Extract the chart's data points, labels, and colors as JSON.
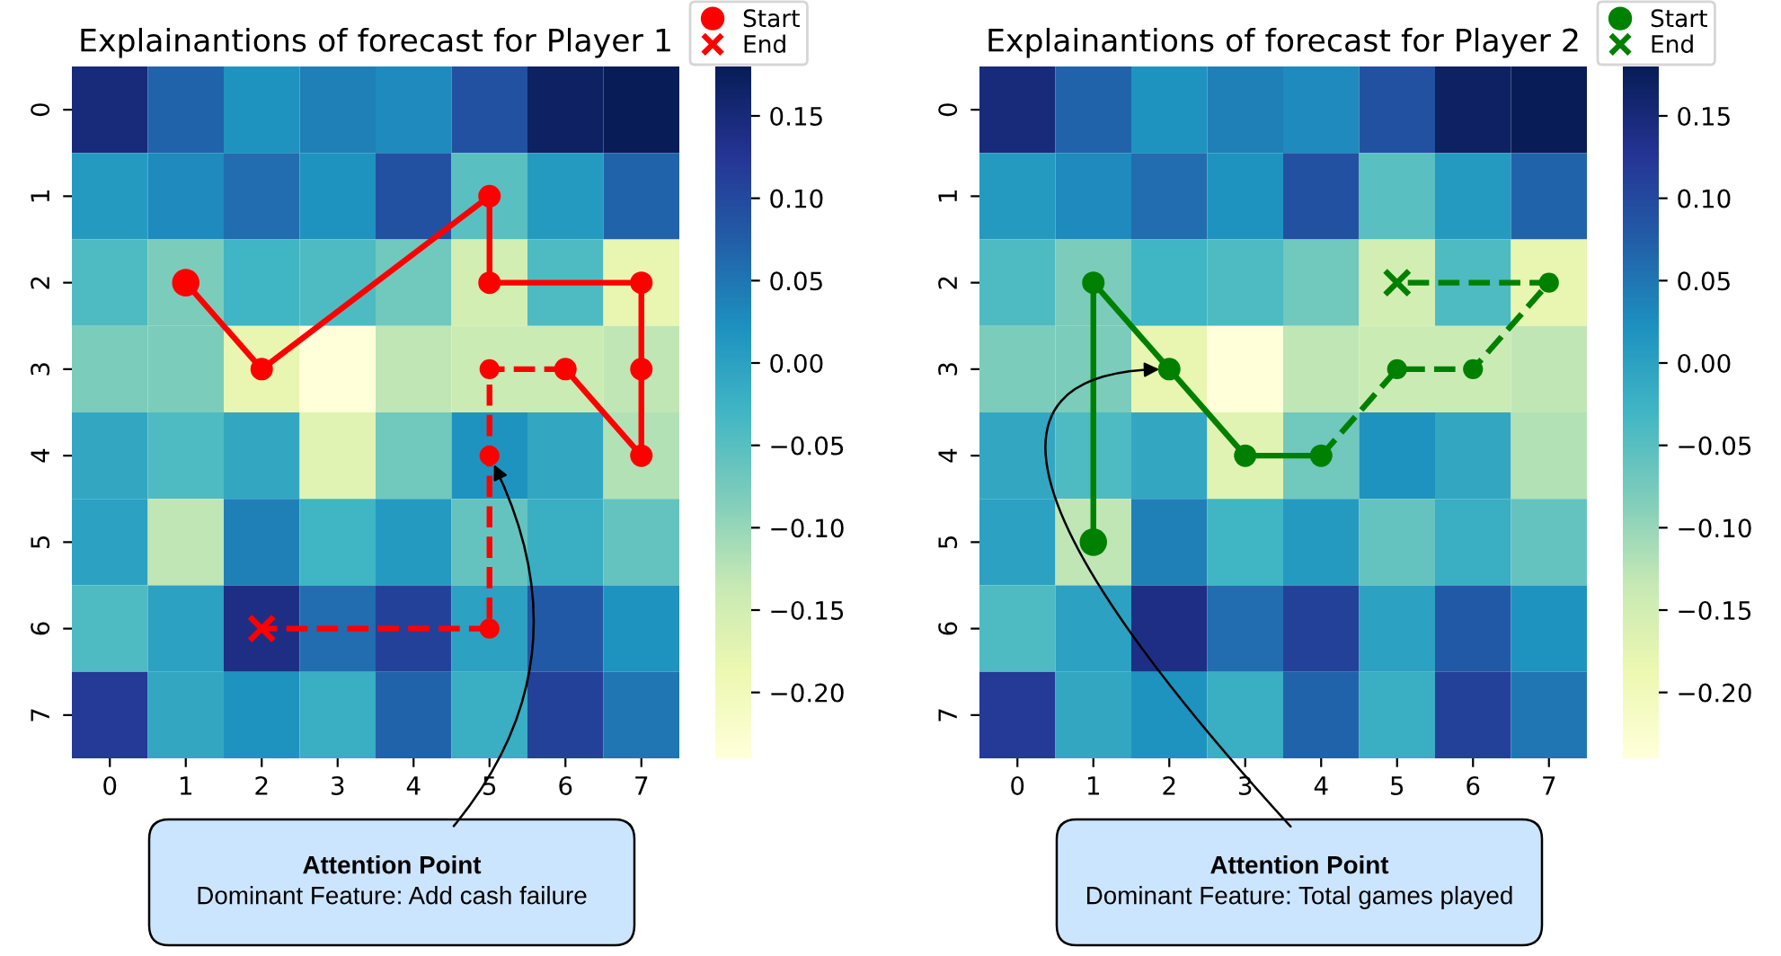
{
  "chart_data": [
    {
      "type": "heatmap",
      "title": "Explainantions of forecast for Player 1",
      "categories": [
        "0",
        "1",
        "2",
        "3",
        "4",
        "5",
        "6",
        "7"
      ],
      "y_categories": [
        "0",
        "1",
        "2",
        "3",
        "4",
        "5",
        "6",
        "7"
      ],
      "cells": [
        [
          0.15,
          0.07,
          0.02,
          0.04,
          0.03,
          0.09,
          0.17,
          0.18
        ],
        [
          0.01,
          0.03,
          0.06,
          0.02,
          0.09,
          -0.05,
          0.01,
          0.07
        ],
        [
          -0.04,
          -0.08,
          -0.03,
          -0.04,
          -0.07,
          -0.15,
          -0.04,
          -0.18
        ],
        [
          -0.08,
          -0.08,
          -0.18,
          -0.24,
          -0.13,
          -0.14,
          -0.14,
          -0.13
        ],
        [
          -0.01,
          -0.04,
          -0.01,
          -0.17,
          -0.07,
          0.02,
          -0.01,
          -0.12
        ],
        [
          0.0,
          -0.13,
          0.04,
          -0.03,
          0.01,
          -0.06,
          -0.02,
          -0.06
        ],
        [
          -0.04,
          0.0,
          0.14,
          0.06,
          0.11,
          0.0,
          0.08,
          0.02
        ],
        [
          0.12,
          -0.01,
          0.02,
          -0.02,
          0.07,
          -0.02,
          0.11,
          0.05
        ]
      ],
      "clim": [
        -0.24,
        0.18
      ],
      "cticks": [
        {
          "value": 0.15,
          "label": "0.15"
        },
        {
          "value": 0.1,
          "label": "0.10"
        },
        {
          "value": 0.05,
          "label": "0.05"
        },
        {
          "value": 0,
          "label": "0.00"
        },
        {
          "value": -0.05,
          "label": "−0.05"
        },
        {
          "value": -0.1,
          "label": "−0.10"
        },
        {
          "value": -0.15,
          "label": "−0.15"
        },
        {
          "value": -0.2,
          "label": "−0.20"
        }
      ],
      "legend": "top right",
      "series": [
        {
          "type": "line",
          "color": "#ff0000",
          "marker": "circle",
          "line_style": "solid",
          "x": [
            "1",
            "2",
            "5",
            "5",
            "7",
            "7",
            "7",
            "6"
          ],
          "values": [
            2,
            3,
            1,
            2,
            2,
            3,
            4,
            3
          ]
        },
        {
          "type": "line",
          "color": "#ff0000",
          "marker": "none",
          "line_style": "dashed",
          "x": [
            "6",
            "5",
            "5",
            "5",
            "2"
          ],
          "values": [
            3,
            3,
            4,
            6,
            6
          ]
        },
        {
          "type": "scatter",
          "color": "#ff0000",
          "marker": "circle",
          "x": [
            "5",
            "5",
            "5"
          ],
          "values": [
            3,
            4,
            6
          ]
        },
        {
          "name": "Start",
          "type": "scatter",
          "color": "#ff0000",
          "marker": "circle",
          "x": [
            "1"
          ],
          "values": [
            2
          ]
        },
        {
          "name": "End",
          "type": "scatter",
          "color": "#ff0000",
          "marker": "cross",
          "x": [
            "2"
          ],
          "values": [
            6
          ]
        }
      ],
      "annotations": [
        {
          "text": "Attention Point\nDominant Feature: Add cash failure",
          "x": "5",
          "y": "4"
        }
      ]
    },
    {
      "type": "heatmap",
      "title": "Explainantions of forecast for Player 2",
      "categories": [
        "0",
        "1",
        "2",
        "3",
        "4",
        "5",
        "6",
        "7"
      ],
      "y_categories": [
        "0",
        "1",
        "2",
        "3",
        "4",
        "5",
        "6",
        "7"
      ],
      "cells": [
        [
          0.15,
          0.07,
          0.02,
          0.04,
          0.03,
          0.09,
          0.17,
          0.18
        ],
        [
          0.01,
          0.03,
          0.06,
          0.02,
          0.09,
          -0.05,
          0.01,
          0.07
        ],
        [
          -0.04,
          -0.08,
          -0.03,
          -0.04,
          -0.07,
          -0.15,
          -0.04,
          -0.18
        ],
        [
          -0.08,
          -0.08,
          -0.18,
          -0.24,
          -0.13,
          -0.14,
          -0.14,
          -0.13
        ],
        [
          -0.01,
          -0.04,
          -0.01,
          -0.17,
          -0.07,
          0.02,
          -0.01,
          -0.12
        ],
        [
          0.0,
          -0.13,
          0.04,
          -0.03,
          0.01,
          -0.06,
          -0.02,
          -0.06
        ],
        [
          -0.04,
          0.0,
          0.14,
          0.06,
          0.11,
          0.0,
          0.08,
          0.02
        ],
        [
          0.12,
          -0.01,
          0.02,
          -0.02,
          0.07,
          -0.02,
          0.11,
          0.05
        ]
      ],
      "clim": [
        -0.24,
        0.18
      ],
      "cticks": [
        {
          "value": 0.15,
          "label": "0.15"
        },
        {
          "value": 0.1,
          "label": "0.10"
        },
        {
          "value": 0.05,
          "label": "0.05"
        },
        {
          "value": 0,
          "label": "0.00"
        },
        {
          "value": -0.05,
          "label": "−0.05"
        },
        {
          "value": -0.1,
          "label": "−0.10"
        },
        {
          "value": -0.15,
          "label": "−0.15"
        },
        {
          "value": -0.2,
          "label": "−0.20"
        }
      ],
      "legend": "top right",
      "series": [
        {
          "type": "line",
          "color": "#008000",
          "marker": "circle",
          "line_style": "solid",
          "x": [
            "1",
            "1",
            "2",
            "3",
            "4"
          ],
          "values": [
            5,
            2,
            3,
            4,
            4
          ]
        },
        {
          "type": "line",
          "color": "#008000",
          "marker": "none",
          "line_style": "dashed",
          "x": [
            "4",
            "5",
            "6",
            "7",
            "5"
          ],
          "values": [
            4,
            3,
            3,
            2,
            2
          ]
        },
        {
          "type": "scatter",
          "color": "#008000",
          "marker": "circle",
          "x": [
            "5",
            "6",
            "7"
          ],
          "values": [
            3,
            3,
            2
          ]
        },
        {
          "name": "Start",
          "type": "scatter",
          "color": "#008000",
          "marker": "circle",
          "x": [
            "1"
          ],
          "values": [
            5
          ]
        },
        {
          "name": "End",
          "type": "scatter",
          "color": "#008000",
          "marker": "cross",
          "x": [
            "5"
          ],
          "values": [
            2
          ]
        }
      ],
      "annotations": [
        {
          "text": "Attention Point\nDominant Feature: Total games played",
          "x": "2",
          "y": "3"
        }
      ]
    }
  ]
}
